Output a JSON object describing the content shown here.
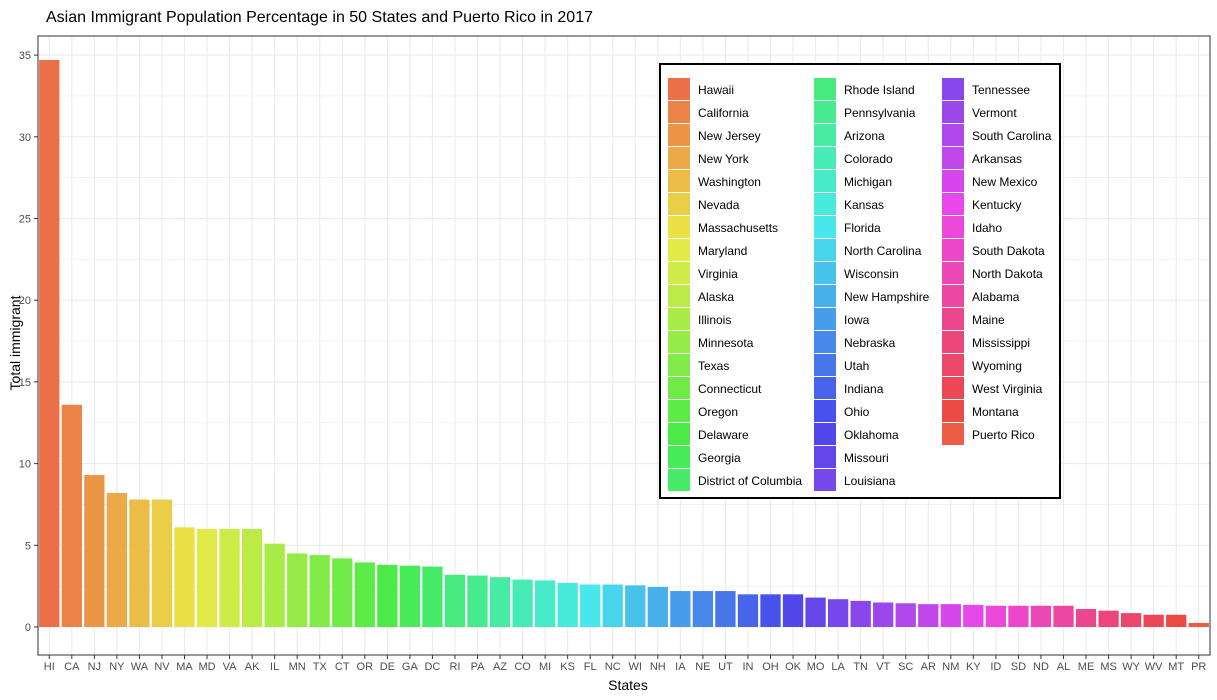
{
  "chart_data": {
    "type": "bar",
    "title": "Asian Immigrant Population Percentage in 50 States and Puerto Rico in 2017",
    "xlabel": "States",
    "ylabel": "Total immigrant",
    "ylim": [
      0,
      36
    ],
    "yticks": [
      0,
      5,
      10,
      15,
      20,
      25,
      30,
      35
    ],
    "grid": true,
    "legend_position": "top-right",
    "categories": [
      "HI",
      "CA",
      "NJ",
      "NY",
      "WA",
      "NV",
      "MA",
      "MD",
      "VA",
      "AK",
      "IL",
      "MN",
      "TX",
      "CT",
      "OR",
      "DE",
      "GA",
      "DC",
      "RI",
      "PA",
      "AZ",
      "CO",
      "MI",
      "KS",
      "FL",
      "NC",
      "WI",
      "NH",
      "IA",
      "NE",
      "UT",
      "IN",
      "OH",
      "OK",
      "MO",
      "LA",
      "TN",
      "VT",
      "SC",
      "AR",
      "NM",
      "KY",
      "ID",
      "SD",
      "ND",
      "AL",
      "ME",
      "MS",
      "WY",
      "WV",
      "MT",
      "PR"
    ],
    "legend_names": [
      "Hawaii",
      "California",
      "New Jersey",
      "New York",
      "Washington",
      "Nevada",
      "Massachusetts",
      "Maryland",
      "Virginia",
      "Alaska",
      "Illinois",
      "Minnesota",
      "Texas",
      "Connecticut",
      "Oregon",
      "Delaware",
      "Georgia",
      "District of Columbia",
      "Rhode Island",
      "Pennsylvania",
      "Arizona",
      "Colorado",
      "Michigan",
      "Kansas",
      "Florida",
      "North Carolina",
      "Wisconsin",
      "New Hampshire",
      "Iowa",
      "Nebraska",
      "Utah",
      "Indiana",
      "Ohio",
      "Oklahoma",
      "Missouri",
      "Louisiana",
      "Tennessee",
      "Vermont",
      "South Carolina",
      "Arkansas",
      "New Mexico",
      "Kentucky",
      "Idaho",
      "South Dakota",
      "North Dakota",
      "Alabama",
      "Maine",
      "Mississippi",
      "Wyoming",
      "West Virginia",
      "Montana",
      "Puerto Rico"
    ],
    "values": [
      34.7,
      13.6,
      9.3,
      8.2,
      7.8,
      7.8,
      6.1,
      6.0,
      6.0,
      6.0,
      5.1,
      4.5,
      4.4,
      4.2,
      3.95,
      3.8,
      3.75,
      3.7,
      3.2,
      3.15,
      3.05,
      2.9,
      2.85,
      2.7,
      2.6,
      2.6,
      2.55,
      2.45,
      2.2,
      2.2,
      2.2,
      2.0,
      2.0,
      2.0,
      1.8,
      1.7,
      1.6,
      1.5,
      1.45,
      1.4,
      1.4,
      1.35,
      1.3,
      1.3,
      1.3,
      1.3,
      1.1,
      1.0,
      0.85,
      0.75,
      0.75,
      0.25
    ]
  }
}
